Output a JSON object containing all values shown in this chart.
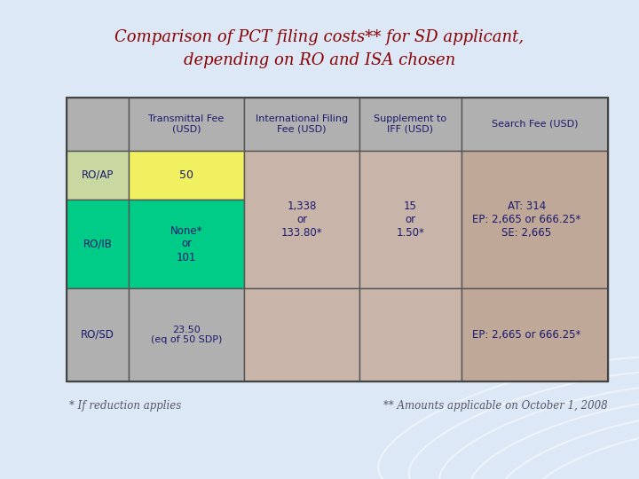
{
  "title_line1": "Comparison of PCT filing costs** for SD applicant,",
  "title_line2": "depending on RO and ISA chosen",
  "title_color": "#8B0000",
  "title_fontsize": 13,
  "bg_color": "#dce8f5",
  "table": {
    "col_headers": [
      "Transmittal Fee\n(USD)",
      "International Filing\nFee (USD)",
      "Supplement to\nIFF (USD)",
      "Search Fee (USD)"
    ],
    "col_header_bg": "#b0b0b0",
    "col_header_fg": "#1a1a6e",
    "rows": [
      {
        "label": "RO/AP",
        "label_bg": "#c8d8a0",
        "label_fg": "#1a1a6e",
        "cells": [
          {
            "text": "50",
            "bg": "#f0f060",
            "fg": "#1a1a6e"
          },
          {
            "text": "",
            "bg": "#c8b4a8",
            "fg": "#1a1a6e"
          },
          {
            "text": "",
            "bg": "#c8b4a8",
            "fg": "#1a1a6e"
          },
          {
            "text": "",
            "bg": "#bfa898",
            "fg": "#1a1a6e"
          }
        ]
      },
      {
        "label": "RO/IB",
        "label_bg": "#00cc88",
        "label_fg": "#1a1a6e",
        "cells": [
          {
            "text": "None*\nor\n101",
            "bg": "#00cc88",
            "fg": "#1a1a6e"
          },
          {
            "text": "1,338\nor\n133.80*",
            "bg": "#c8b4a8",
            "fg": "#1a1a6e"
          },
          {
            "text": "15\nor\n1.50*",
            "bg": "#c8b4a8",
            "fg": "#1a1a6e"
          },
          {
            "text": "AT: 314\nEP: 2,665 or 666.25*\nSE: 2,665",
            "bg": "#bfa898",
            "fg": "#1a1a6e"
          }
        ]
      },
      {
        "label": "RO/SD",
        "label_bg": "#b0b0b0",
        "label_fg": "#1a1a6e",
        "cells": [
          {
            "text": "23.50\n(eq of 50 SDP)",
            "bg": "#b0b0b0",
            "fg": "#1a1a6e"
          },
          {
            "text": "",
            "bg": "#c8b4a8",
            "fg": "#1a1a6e"
          },
          {
            "text": "",
            "bg": "#c8b4a8",
            "fg": "#1a1a6e"
          },
          {
            "text": "EP: 2,665 or 666.25*",
            "bg": "#bfa898",
            "fg": "#1a1a6e"
          }
        ]
      }
    ]
  },
  "footnote_left": "* If reduction applies",
  "footnote_right": "** Amounts applicable on October 1, 2008",
  "footnote_color": "#555566",
  "footnote_fontsize": 8.5
}
